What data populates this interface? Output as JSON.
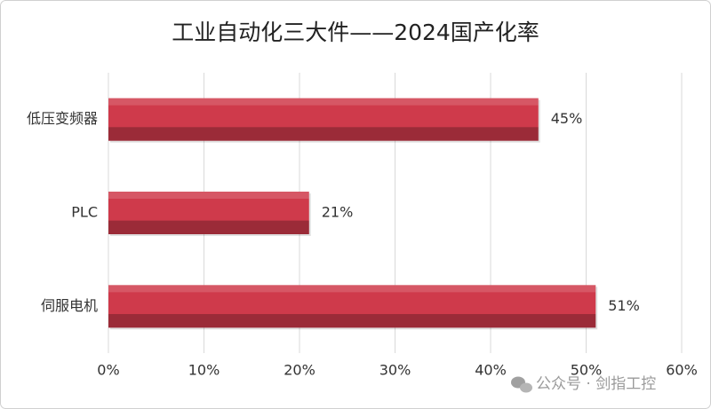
{
  "chart_data": {
    "type": "bar",
    "orientation": "horizontal",
    "title": "工业自动化三大件——2024国产化率",
    "categories": [
      "低压变频器",
      "PLC",
      "伺服电机"
    ],
    "values": [
      45,
      21,
      51
    ],
    "value_labels": [
      "45%",
      "21%",
      "51%"
    ],
    "color": "#cf3a4b",
    "xlim": [
      0,
      60
    ],
    "xticks": [
      {
        "value": 0,
        "label": "0%"
      },
      {
        "value": 10,
        "label": "10%"
      },
      {
        "value": 20,
        "label": "20%"
      },
      {
        "value": 30,
        "label": "30%"
      },
      {
        "value": 40,
        "label": "40%"
      },
      {
        "value": 50,
        "label": "50%"
      },
      {
        "value": 60,
        "label": "60%"
      }
    ],
    "grid": true,
    "watermark": "公众号 · 剑指工控"
  }
}
